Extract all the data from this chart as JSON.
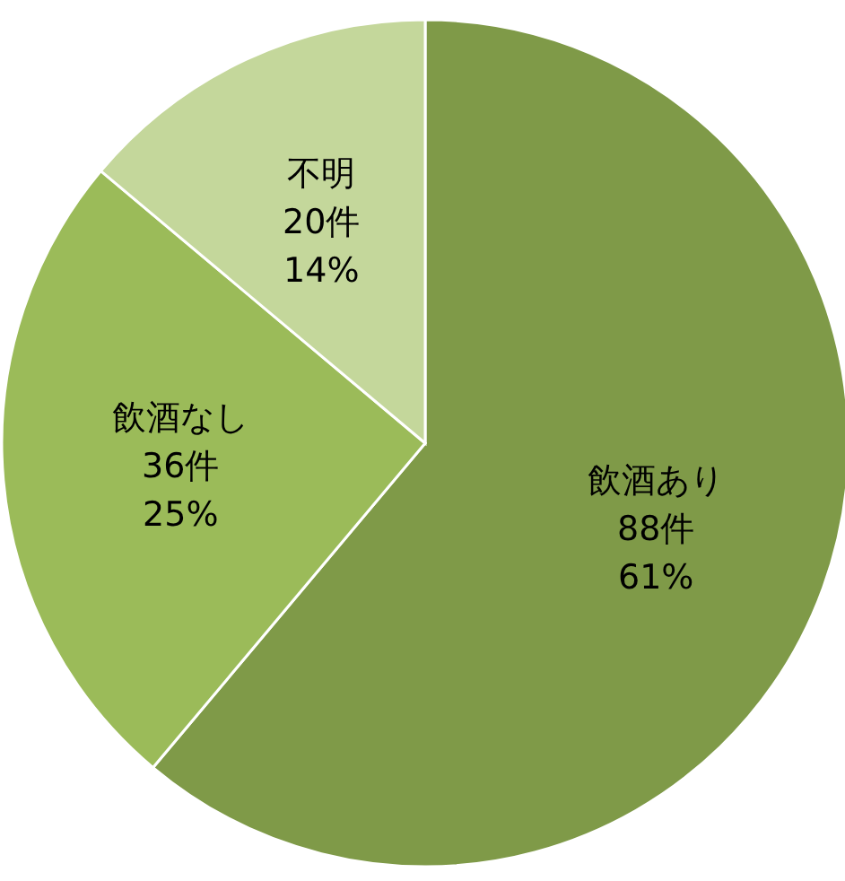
{
  "chart_data": {
    "type": "pie",
    "categories": [
      "飲酒あり",
      "飲酒なし",
      "不明"
    ],
    "values": [
      88,
      36,
      20
    ],
    "colors": [
      "#7f9a48",
      "#9bbb59",
      "#c4d79b"
    ],
    "value_labels": [
      "88件\n61%",
      "36件\n25%",
      "20件\n14%"
    ]
  }
}
